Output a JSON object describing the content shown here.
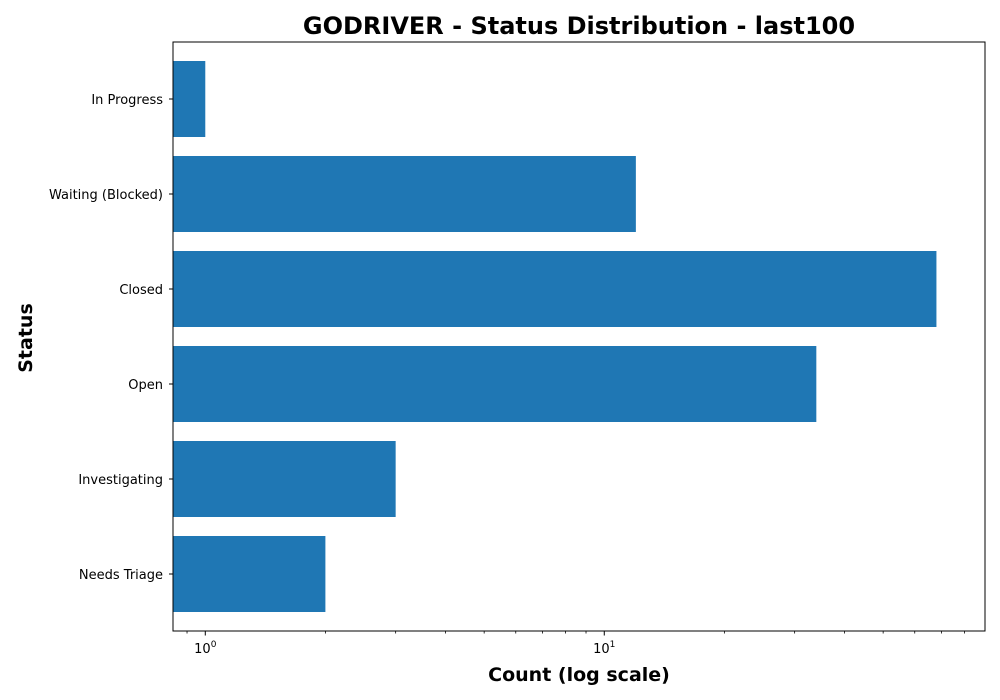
{
  "chart_data": {
    "type": "bar",
    "orientation": "horizontal",
    "title": "GODRIVER - Status Distribution - last100",
    "xlabel": "Count (log scale)",
    "ylabel": "Status",
    "x_scale": "log",
    "xlim": [
      0.83,
      90
    ],
    "x_ticks": [
      {
        "value": 1,
        "base": "10",
        "exp": "0"
      },
      {
        "value": 10,
        "base": "10",
        "exp": "1"
      }
    ],
    "categories": [
      "In Progress",
      "Waiting (Blocked)",
      "Closed",
      "Open",
      "Investigating",
      "Needs Triage"
    ],
    "values": [
      1,
      12,
      68,
      34,
      3,
      2
    ],
    "bar_color": "#1f77b4",
    "grid": false,
    "legend": false
  }
}
